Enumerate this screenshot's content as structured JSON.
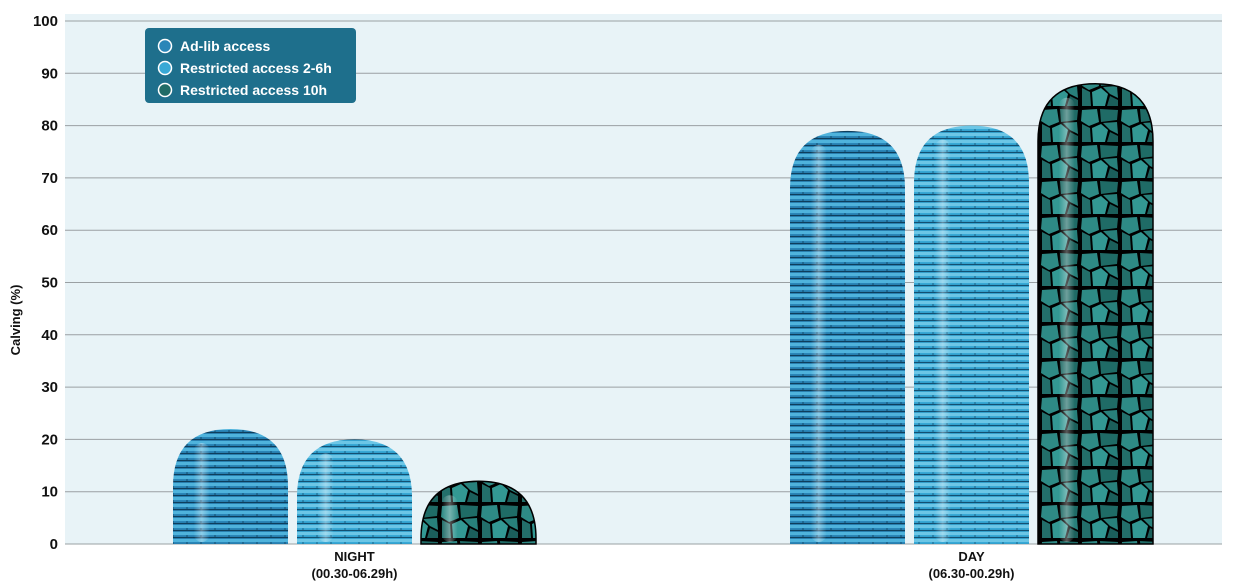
{
  "chart_data": {
    "type": "bar",
    "ylabel": "Calving (%)",
    "ylim": [
      0,
      100
    ],
    "yticks": [
      0,
      10,
      20,
      30,
      40,
      50,
      60,
      70,
      80,
      90,
      100
    ],
    "grid": true,
    "legend_position": "top-left",
    "categories": [
      {
        "label": "NIGHT",
        "sublabel": "(00.30-06.29h)"
      },
      {
        "label": "DAY",
        "sublabel": "(06.30-00.29h)"
      }
    ],
    "series": [
      {
        "name": "Ad-lib access",
        "values": [
          22,
          79
        ],
        "color": "#2a86b8"
      },
      {
        "name": "Restricted access 2-6h",
        "values": [
          20,
          80
        ],
        "color": "#38a9d6"
      },
      {
        "name": "Restricted access 10h",
        "values": [
          12,
          88
        ],
        "color": "#1f6b66"
      }
    ]
  },
  "colors": {
    "plot_background": "#e8f3f7",
    "legend_background": "#1e6f8c",
    "gridline": "#9aa0a3"
  }
}
